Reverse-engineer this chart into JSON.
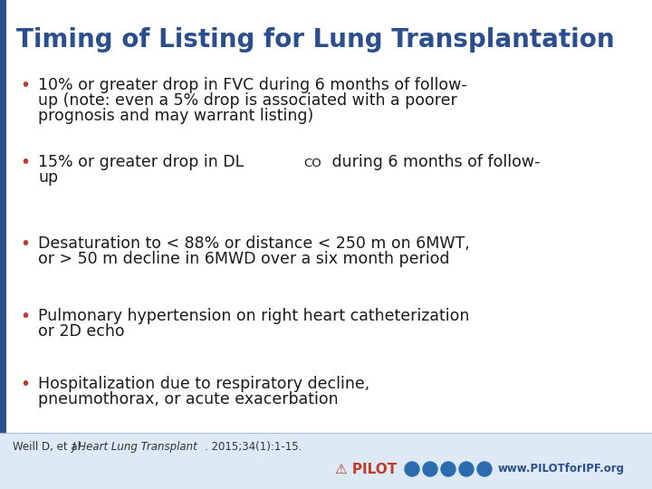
{
  "title": "Timing of Listing for Lung Transplantation",
  "title_color": "#2B4F8C",
  "title_fontsize": 20,
  "background_color": "#FFFFFF",
  "left_border_color": "#2B4F8C",
  "bullet_color": "#C0392B",
  "text_color": "#1a1a1a",
  "bullet_fontsize": 12.5,
  "footer_bg_color": "#DDEEFF",
  "citation_fontsize": 9,
  "pilot_color": "#C0392B",
  "web_color": "#2B4F8C",
  "bullets": [
    {
      "lines": [
        "10% or greater drop in FVC during 6 months of follow-",
        "up (note: even a 5% drop is associated with a poorer",
        "prognosis and may warrant listing)"
      ],
      "has_subscript": false
    },
    {
      "line1_before": "15% or greater drop in DL",
      "subscript": "CO",
      "line1_after": " during 6 months of follow-",
      "line2": "up",
      "has_subscript": true
    },
    {
      "lines": [
        "Desaturation to < 88% or distance < 250 m on 6MWT,",
        "or > 50 m decline in 6MWD over a six month period"
      ],
      "has_subscript": false
    },
    {
      "lines": [
        "Pulmonary hypertension on right heart catheterization",
        "or 2D echo"
      ],
      "has_subscript": false
    },
    {
      "lines": [
        "Hospitalization due to respiratory decline,",
        "pneumothorax, or acute exacerbation"
      ],
      "has_subscript": false
    }
  ]
}
